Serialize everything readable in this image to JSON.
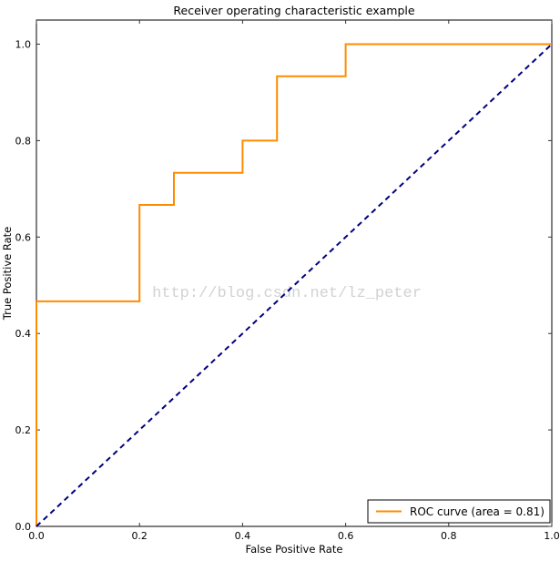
{
  "figure": {
    "background": "#ffffff",
    "frame_color": "#000000",
    "tick_color": "#333333"
  },
  "chart_data": {
    "type": "line",
    "title": "Receiver operating characteristic example",
    "xlabel": "False Positive Rate",
    "ylabel": "True Positive Rate",
    "xlim": [
      0.0,
      1.0
    ],
    "ylim": [
      0.0,
      1.05
    ],
    "x_ticks": [
      "0.0",
      "0.2",
      "0.4",
      "0.6",
      "0.8",
      "1.0"
    ],
    "y_ticks": [
      "0.0",
      "0.2",
      "0.4",
      "0.6",
      "0.8",
      "1.0"
    ],
    "grid": false,
    "legend": {
      "position": "lower-right",
      "label": "ROC curve (area = 0.81)",
      "line_color": "#FF8C00",
      "border_color": "#000000",
      "background": "#ffffff"
    },
    "series": [
      {
        "name": "roc-curve",
        "label": "ROC curve (area = 0.81)",
        "color": "#FF8C00",
        "style": "solid",
        "width": 2,
        "x": [
          0.0,
          0.0,
          0.2,
          0.2,
          0.2667,
          0.2667,
          0.4,
          0.4,
          0.4667,
          0.4667,
          0.6,
          0.6,
          1.0
        ],
        "y": [
          0.0,
          0.4667,
          0.4667,
          0.6667,
          0.6667,
          0.7333,
          0.7333,
          0.8,
          0.8,
          0.9333,
          0.9333,
          1.0,
          1.0
        ]
      },
      {
        "name": "chance-diagonal",
        "label": "",
        "color": "#000080",
        "style": "dashed",
        "width": 2,
        "x": [
          0.0,
          1.0
        ],
        "y": [
          0.0,
          1.0
        ]
      }
    ],
    "watermark": {
      "text": "http://blog.csdn.net/lz_peter",
      "color": "#d2d2d2"
    }
  }
}
